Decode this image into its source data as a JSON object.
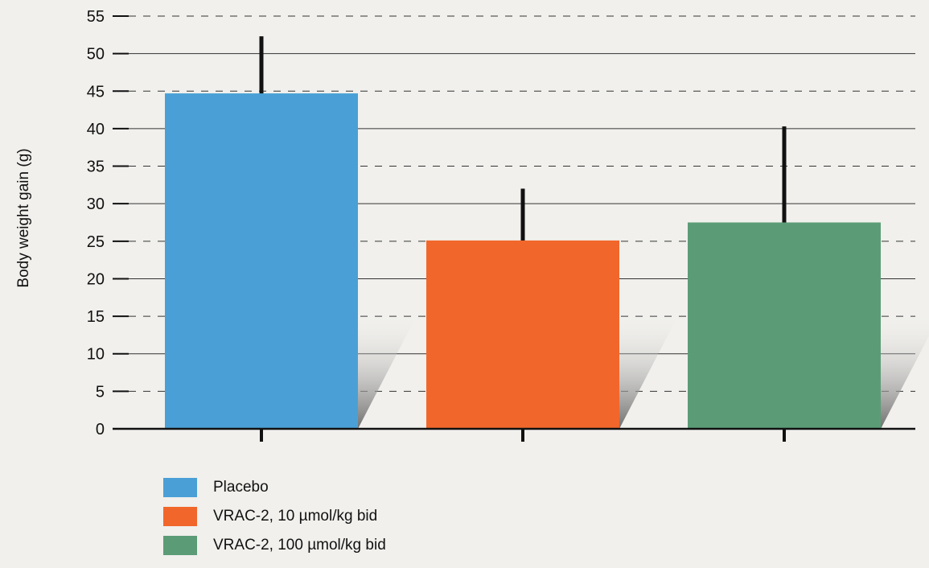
{
  "chart_data": {
    "type": "bar",
    "title": "",
    "xlabel": "",
    "ylabel": "Body weight gain  (g)",
    "ylim": [
      0,
      55
    ],
    "yticks": [
      0,
      5,
      10,
      15,
      20,
      25,
      30,
      35,
      40,
      45,
      50,
      55
    ],
    "grid": true,
    "legend_position": "bottom-left",
    "series": [
      {
        "name": "Placebo",
        "value": 44.7,
        "error_upper": 52.3,
        "color": "#4aa0d6"
      },
      {
        "name": "VRAC-2, 10 µmol/kg bid",
        "value": 25.1,
        "error_upper": 32.0,
        "color": "#f1672b"
      },
      {
        "name": "VRAC-2, 100 µmol/kg bid",
        "value": 27.5,
        "error_upper": 40.3,
        "color": "#5b9c76"
      }
    ]
  }
}
